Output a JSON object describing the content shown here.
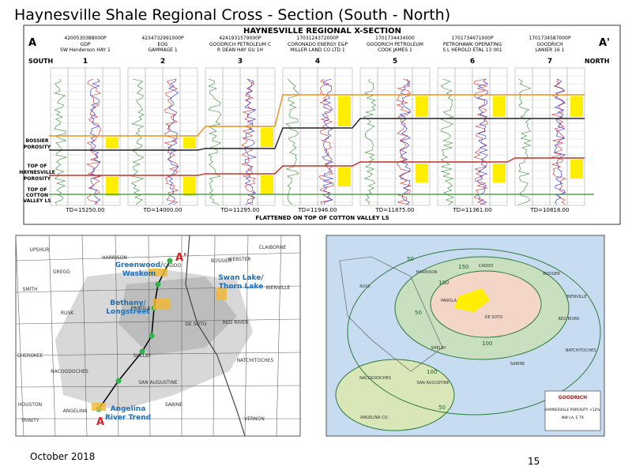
{
  "title": "Haynesville Shale Regional Cross - Section (South - North)",
  "cross_section": {
    "title": "HAYNESVILLE REGIONAL X-SECTION",
    "start": "A",
    "end": "A'",
    "south": "SOUTH",
    "north": "NORTH",
    "wells": [
      {
        "number": "1",
        "api": "4200530388000P",
        "operator": "GDP",
        "lease": "SW Henderson HAY 1",
        "td": "TD=15250.00"
      },
      {
        "number": "2",
        "api": "4234732991000P",
        "operator": "EOG",
        "lease": "GAMMAGE 1",
        "td": "TD=14000.00"
      },
      {
        "number": "3",
        "api": "4241931579000P",
        "operator": "GOODRICH PETROLEUM C",
        "lease": "R DEAN HAY GU 1H",
        "td": "TD=11295.00"
      },
      {
        "number": "4",
        "api": "1703124372000P",
        "operator": "CORONADO ENERGY E&P",
        "lease": "MILLER LAND CO LTD 1",
        "td": "TD=11946.00"
      },
      {
        "number": "5",
        "api": "1701734434000",
        "operator": "GOODRICH PETROLEUM",
        "lease": "COOK JAMES 1",
        "td": "TD=11875.00"
      },
      {
        "number": "6",
        "api": "1701734671000P",
        "operator": "PETROHAWK OPERATING",
        "lease": "S L HEROLD ETAL 13 001",
        "td": "TD=11361.00"
      },
      {
        "number": "7",
        "api": "1701734587000P",
        "operator": "GOODRICH",
        "lease": "LANIER 16 1",
        "td": "TD=10818.00"
      }
    ],
    "zones": [
      [
        "BOSSIER",
        "POROSITY"
      ],
      [
        "TOP OF",
        "HAYNESVILLE",
        "POROSITY"
      ],
      [
        "TOP OF",
        "COTTON",
        "VALLEY LS"
      ]
    ],
    "note": "FLATTENED ON TOP OF COTTON VALLEY LS"
  },
  "location_map": {
    "counties": [
      "UPSHUR",
      "HARRISON",
      "GREGG",
      "SMITH",
      "RUSK",
      "PANOLA",
      "CHEROKEE",
      "NACOGDOCHES",
      "SHELBY",
      "SAN AUGUSTINE",
      "SABINE",
      "ANGELINA",
      "HOUSTON",
      "TRINITY",
      "CADDO",
      "BOSSIER",
      "WEBSTER",
      "CLAIBORNE",
      "BIENVILLE",
      "RED RIVER",
      "DE SOTO",
      "NATCHITOCHES",
      "VERNON"
    ],
    "plays": [
      [
        "Greenwood/",
        "Waskom"
      ],
      [
        "Swan Lake/",
        "Thorn Lake"
      ],
      [
        "Bethany/",
        "Longstreet"
      ],
      [
        "Angelina",
        "River Trend"
      ]
    ],
    "start": "A",
    "end": "A'"
  },
  "porosity_map": {
    "counties": [
      "HARRISON",
      "CADDO",
      "BOSSIER",
      "BIENVILLE",
      "RUSK",
      "PANOLA",
      "DE SOTO",
      "RED RIVER",
      "NATCHITOCHES",
      "SHELBY",
      "SABINE",
      "NACOGDOCHES",
      "SAN AUGUSTINE",
      "ANGELINA CO."
    ],
    "contours": [
      "50",
      "100",
      "150",
      "100",
      "50",
      "100",
      "50"
    ],
    "company": "GOODRICH",
    "legend": [
      "HAYNESVILLE POROSITY >12%",
      "NW LA, E TX"
    ]
  },
  "footer": {
    "date": "October 2018",
    "page": "15"
  }
}
